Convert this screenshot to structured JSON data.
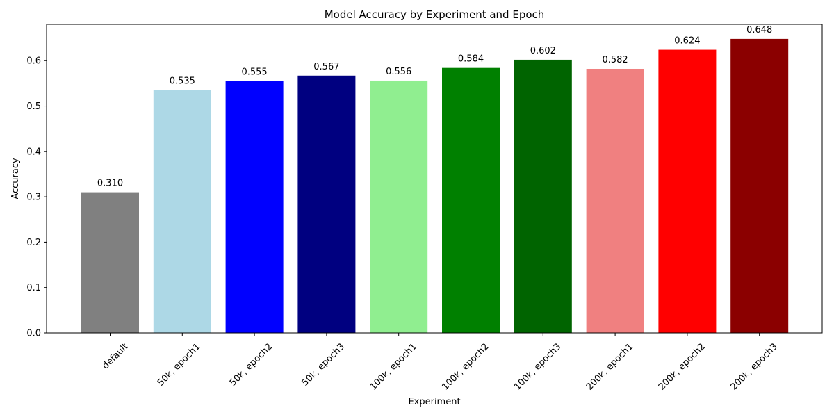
{
  "chart_data": {
    "type": "bar",
    "title": "Model Accuracy by Experiment and Epoch",
    "xlabel": "Experiment",
    "ylabel": "Accuracy",
    "ylim": [
      0,
      0.68
    ],
    "yticks": [
      "0.0",
      "0.1",
      "0.2",
      "0.3",
      "0.4",
      "0.5",
      "0.6"
    ],
    "grid": false,
    "categories": [
      "default",
      "50k, epoch1",
      "50k, epoch2",
      "50k, epoch3",
      "100k, epoch1",
      "100k, epoch2",
      "100k, epoch3",
      "200k, epoch1",
      "200k, epoch2",
      "200k, epoch3"
    ],
    "values": [
      0.31,
      0.535,
      0.555,
      0.567,
      0.556,
      0.584,
      0.602,
      0.582,
      0.624,
      0.648
    ],
    "value_labels": [
      "0.310",
      "0.535",
      "0.555",
      "0.567",
      "0.556",
      "0.584",
      "0.602",
      "0.582",
      "0.624",
      "0.648"
    ],
    "colors": [
      "#808080",
      "#add8e6",
      "#0000ff",
      "#000080",
      "#90ee90",
      "#008000",
      "#006400",
      "#f08080",
      "#ff0000",
      "#8b0000"
    ]
  }
}
